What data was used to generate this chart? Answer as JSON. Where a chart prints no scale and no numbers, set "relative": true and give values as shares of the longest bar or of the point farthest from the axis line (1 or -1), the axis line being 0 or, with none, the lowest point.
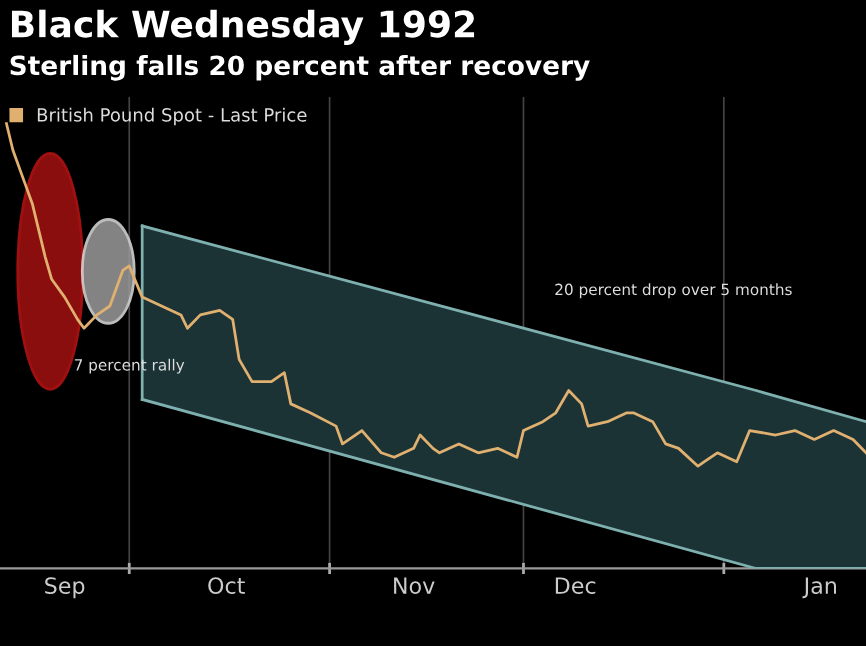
{
  "chart_data": {
    "type": "line",
    "title": "Black Wednesday 1992",
    "subtitle": "Sterling falls 20 percent after recovery",
    "relative": true,
    "legend": "top left",
    "grid": "x",
    "marker": "none",
    "line_style": "solid",
    "annotations": [
      "7 percent rally",
      "20 percent drop over 5 months"
    ],
    "xlim": [
      "1992-09-11",
      "1993-01-23"
    ],
    "xticks": [
      {
        "value": "1992-09-21",
        "label": "Sep"
      },
      {
        "value": "1992-10-01",
        "label": null
      },
      {
        "value": "1992-10-16",
        "label": "Oct"
      },
      {
        "value": "1992-11-01",
        "label": null
      },
      {
        "value": "1992-11-14",
        "label": "Nov"
      },
      {
        "value": "1992-12-01",
        "label": null
      },
      {
        "value": "1992-12-09",
        "label": "Dec"
      },
      {
        "value": "1993-01-01",
        "label": null
      },
      {
        "value": "1993-01-16",
        "label": "Jan"
      }
    ],
    "series": [
      {
        "type": "line",
        "color": "#7fb0b0",
        "x": [
          "1992-10-03",
          "1993-01-06",
          "1993-01-23"
        ],
        "values": [
          0.77,
          0.4,
          0.33
        ],
        "lower": [
          0.38,
          0.0,
          0.0
        ],
        "upper": [
          0.77,
          0.4,
          0.33
        ]
      },
      {
        "type": "line",
        "color": "#7fb0b0",
        "x": [
          "1992-10-03",
          "1993-01-06",
          "1993-01-23"
        ],
        "values": [
          0.38,
          0.0,
          0.0
        ]
      },
      {
        "name": "British Pound Spot - Last Price",
        "color": "#e0b070",
        "x": [
          "1992-09-12",
          "1992-09-13",
          "1992-09-15",
          "1992-09-16",
          "1992-09-18",
          "1992-09-19",
          "1992-09-21",
          "1992-09-23",
          "1992-09-24",
          "1992-09-26",
          "1992-09-28",
          "1992-09-30",
          "1992-10-01",
          "1992-10-03",
          "1992-10-06",
          "1992-10-09",
          "1992-10-10",
          "1992-10-12",
          "1992-10-15",
          "1992-10-17",
          "1992-10-18",
          "1992-10-20",
          "1992-10-23",
          "1992-10-25",
          "1992-10-26",
          "1992-10-29",
          "1992-11-02",
          "1992-11-03",
          "1992-11-06",
          "1992-11-09",
          "1992-11-11",
          "1992-11-14",
          "1992-11-15",
          "1992-11-17",
          "1992-11-18",
          "1992-11-21",
          "1992-11-24",
          "1992-11-27",
          "1992-11-30",
          "1992-12-01",
          "1992-12-04",
          "1992-12-06",
          "1992-12-08",
          "1992-12-10",
          "1992-12-11",
          "1992-12-14",
          "1992-12-17",
          "1992-12-18",
          "1992-12-21",
          "1992-12-23",
          "1992-12-25",
          "1992-12-28",
          "1992-12-29",
          "1992-12-31",
          "1993-01-03",
          "1993-01-05",
          "1993-01-09",
          "1993-01-12",
          "1993-01-15",
          "1993-01-18",
          "1993-01-21",
          "1993-01-23"
        ],
        "values": [
          1.0,
          0.94,
          0.86,
          0.82,
          0.7,
          0.65,
          0.61,
          0.56,
          0.54,
          0.57,
          0.59,
          0.67,
          0.68,
          0.61,
          0.59,
          0.57,
          0.54,
          0.57,
          0.58,
          0.56,
          0.47,
          0.42,
          0.42,
          0.44,
          0.37,
          0.35,
          0.32,
          0.28,
          0.31,
          0.26,
          0.25,
          0.27,
          0.3,
          0.27,
          0.26,
          0.28,
          0.26,
          0.27,
          0.25,
          0.31,
          0.33,
          0.35,
          0.4,
          0.37,
          0.32,
          0.33,
          0.35,
          0.35,
          0.33,
          0.28,
          0.27,
          0.23,
          0.24,
          0.26,
          0.24,
          0.31,
          0.3,
          0.31,
          0.29,
          0.31,
          0.29,
          0.26
        ]
      }
    ]
  }
}
